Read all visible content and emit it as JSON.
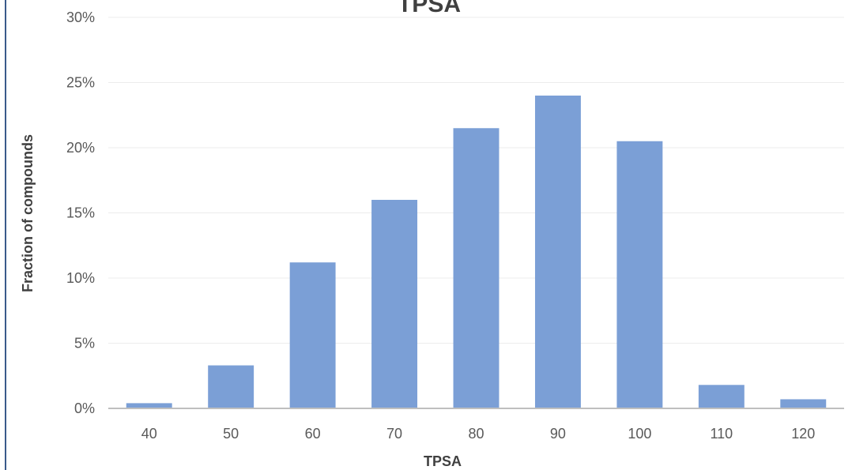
{
  "chart_data": {
    "type": "bar",
    "title": "TPSA",
    "xlabel": "TPSA",
    "ylabel": "Fraction of compounds",
    "categories": [
      "40",
      "50",
      "60",
      "70",
      "80",
      "90",
      "100",
      "110",
      "120"
    ],
    "values": [
      0.4,
      3.3,
      11.2,
      16.0,
      21.5,
      24.0,
      20.5,
      1.8,
      0.7
    ],
    "y_tick_labels": [
      "0%",
      "5%",
      "10%",
      "15%",
      "20%",
      "25%",
      "30%"
    ],
    "ylim": [
      0,
      30
    ],
    "grid": true,
    "legend": "none",
    "bar_color": "#7b9fd6",
    "grid_color": "#ececec",
    "axis_color": "#bfbfbf",
    "frame_color": "#3a5a8a"
  }
}
